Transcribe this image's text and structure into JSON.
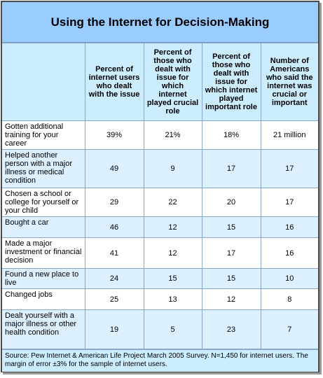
{
  "title": "Using the Internet for Decision-Making",
  "columns": [
    "Percent of internet users who dealt with the issue",
    "Percent of those who dealt with issue for which internet played crucial role",
    "Percent of those who dealt with issue for which internet played important role",
    "Number of Americans who said the internet was crucial or important"
  ],
  "rows": [
    {
      "label": "Gotten additional training for your career",
      "values": [
        "39%",
        "21%",
        "18%",
        "21 million"
      ]
    },
    {
      "label": "Helped another person with a major illness or medical condition",
      "values": [
        "49",
        "9",
        "17",
        "17"
      ]
    },
    {
      "label": "Chosen a school or college for yourself or your child",
      "values": [
        "29",
        "22",
        "20",
        "17"
      ]
    },
    {
      "label": "Bought a car",
      "values": [
        "46",
        "12",
        "15",
        "16"
      ]
    },
    {
      "label": "Made a major investment or financial decision",
      "values": [
        "41",
        "12",
        "17",
        "16"
      ]
    },
    {
      "label": "Found a new place to live",
      "values": [
        "24",
        "15",
        "15",
        "10"
      ]
    },
    {
      "label": "Changed jobs",
      "values": [
        "25",
        "13",
        "12",
        "8"
      ]
    },
    {
      "label": "Dealt yourself with a major illness or other health condition",
      "values": [
        "19",
        "5",
        "23",
        "7"
      ]
    }
  ],
  "source": "Source: Pew Internet & American Life Project March 2005 Survey. N=1,450 for internet users. The margin of error ±3% for the sample of internet users."
}
